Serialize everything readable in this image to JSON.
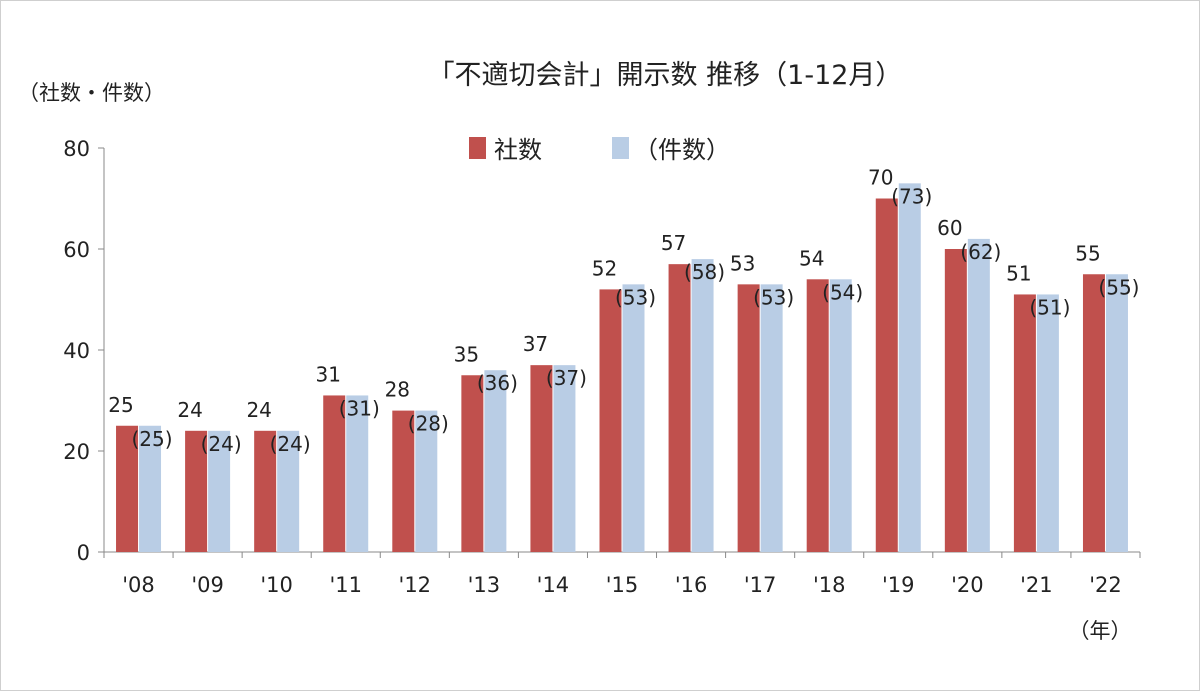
{
  "chart_data": {
    "type": "bar",
    "title": "「不適切会計」開示数 推移（1-12月）",
    "ylabel": "（社数・件数）",
    "xlabel": "（年）",
    "ylim": [
      0,
      80
    ],
    "yticks": [
      0,
      20,
      40,
      60,
      80
    ],
    "grid": false,
    "legend_position": "top",
    "categories": [
      "'08",
      "'09",
      "'10",
      "'11",
      "'12",
      "'13",
      "'14",
      "'15",
      "'16",
      "'17",
      "'18",
      "'19",
      "'20",
      "'21",
      "'22"
    ],
    "series": [
      {
        "name": "社数",
        "color": "#c0504d",
        "values": [
          25,
          24,
          24,
          31,
          28,
          35,
          37,
          52,
          57,
          53,
          54,
          70,
          60,
          51,
          55
        ],
        "labels": [
          "25",
          "24",
          "24",
          "31",
          "28",
          "35",
          "37",
          "52",
          "57",
          "53",
          "54",
          "70",
          "60",
          "51",
          "55"
        ]
      },
      {
        "name": "（件数）",
        "color": "#b9cde5",
        "values": [
          25,
          24,
          24,
          31,
          28,
          36,
          37,
          53,
          58,
          53,
          54,
          73,
          62,
          51,
          55
        ],
        "labels": [
          "(25)",
          "(24)",
          "(24)",
          "(31)",
          "(28)",
          "(36)",
          "(37)",
          "(53)",
          "(58)",
          "(53)",
          "(54)",
          "(73)",
          "(62)",
          "(51)",
          "(55)"
        ]
      }
    ]
  }
}
